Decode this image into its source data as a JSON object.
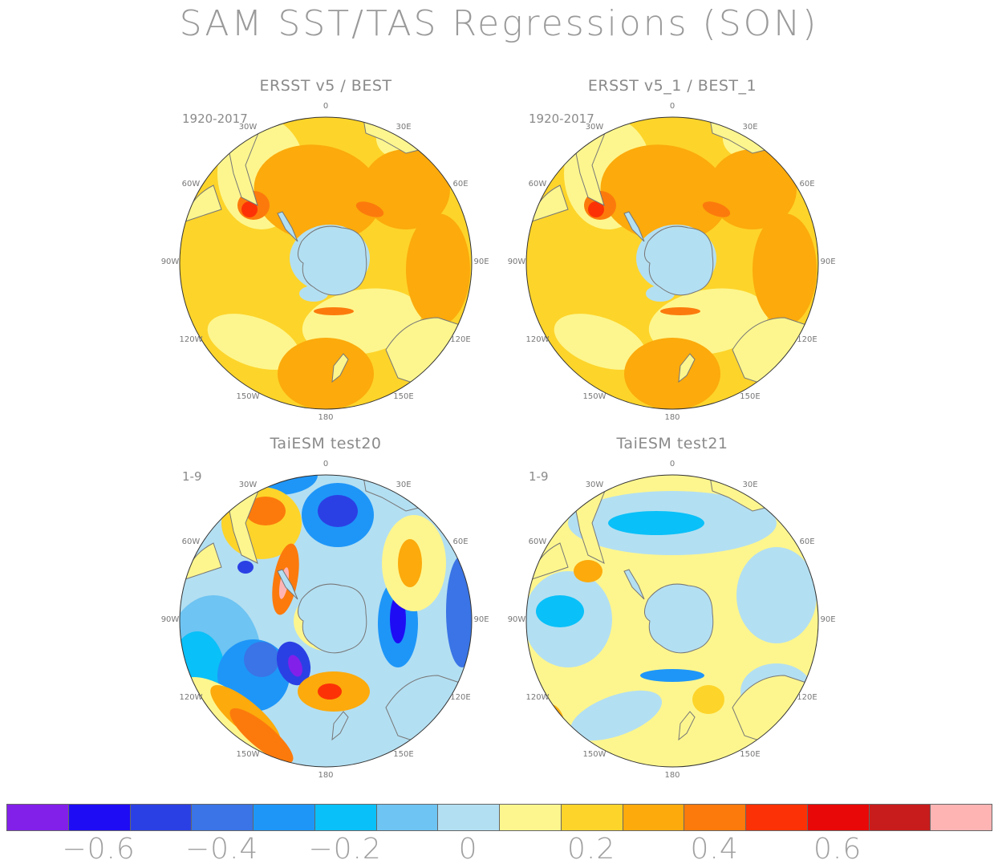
{
  "title": "SAM SST/TAS Regressions (SON)",
  "panels": [
    {
      "title": "ERSST v5 / BEST",
      "period": "1920-2017",
      "style": "obs"
    },
    {
      "title": "ERSST v5_1 / BEST_1",
      "period": "1920-2017",
      "style": "obs"
    },
    {
      "title": "TaiESM test20",
      "period": "1-9",
      "style": "model20"
    },
    {
      "title": "TaiESM test21",
      "period": "1-9",
      "style": "model21"
    }
  ],
  "lon_labels": {
    "n": "0",
    "ne30": "30E",
    "ne60": "60E",
    "e90": "90E",
    "e120": "120E",
    "e150": "150E",
    "s": "180",
    "w150": "150W",
    "w120": "120W",
    "w90": "90W",
    "w60": "60W",
    "w30": "30W"
  },
  "colorbar": {
    "colors": [
      "#8220ea",
      "#1e0cf5",
      "#2b40e4",
      "#3a74e6",
      "#1e96f8",
      "#0ac0f8",
      "#6ec4f2",
      "#b3dff2",
      "#fdf68e",
      "#fdd42a",
      "#fcaa0c",
      "#fc7a0c",
      "#fc3206",
      "#e80808",
      "#c81c1c",
      "#ffb4b4"
    ],
    "labels": [
      "−0.6",
      "−0.4",
      "−0.2",
      "0",
      "0.2",
      "0.4",
      "0.6"
    ]
  }
}
